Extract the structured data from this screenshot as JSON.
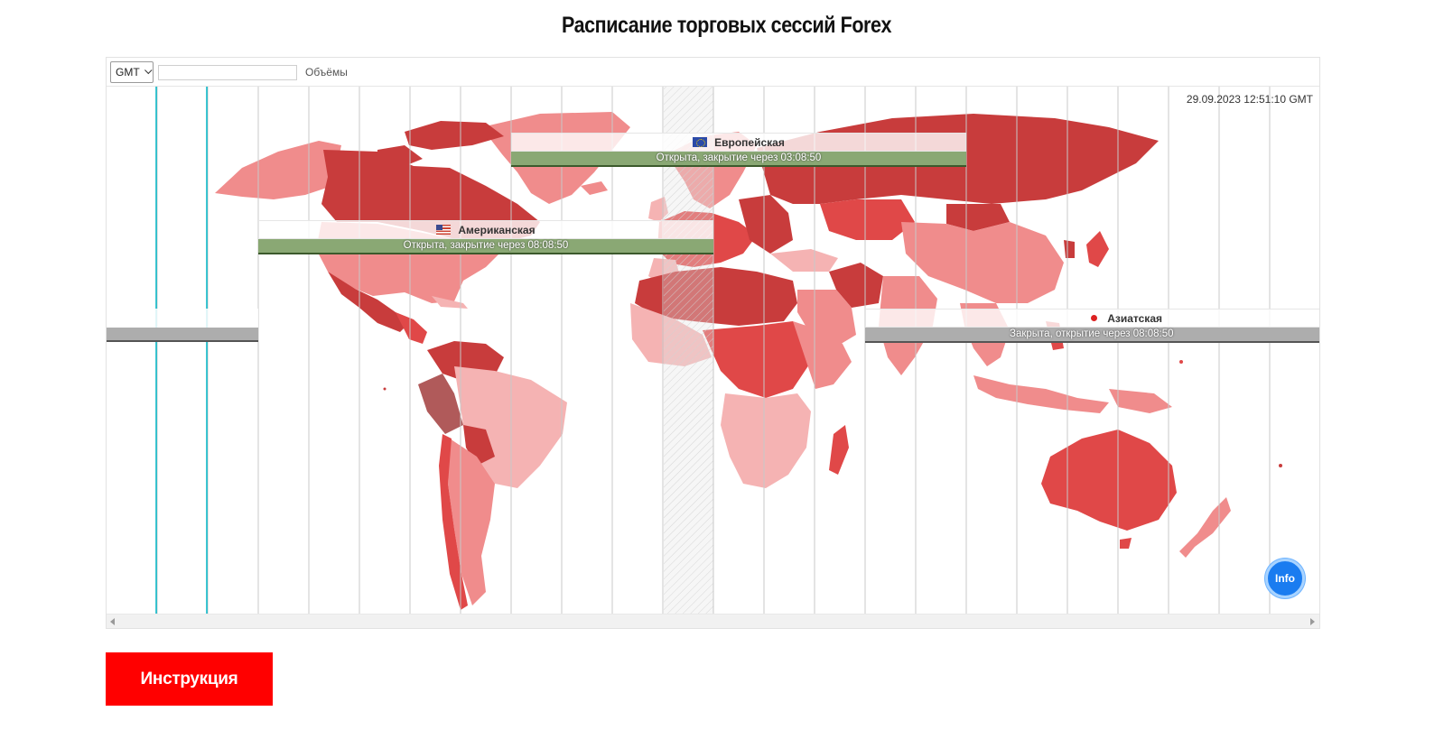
{
  "page": {
    "title": "Расписание торговых сессий Forex",
    "instruction_button": "Инструкция"
  },
  "toolbar": {
    "timezone": "GMT",
    "timezone_input_value": "",
    "volumes_label": "Объёмы"
  },
  "map": {
    "datetime": "29.09.2023 12:51:10 GMT",
    "info_button": "Info",
    "colors": {
      "dark_red": "#c83c3c",
      "red": "#e04848",
      "light_red": "#f08c8c",
      "pale_red": "#f5b3b3",
      "session_open": "#8aa874",
      "session_closed": "#adadad",
      "current_time_band": "#dcdcdc",
      "cyan_lines": "#00b7c7"
    }
  },
  "sessions": {
    "european": {
      "name": "Европейская",
      "status": "Открыта, закрытие через 03:08:50",
      "flag": "eu-flag-icon"
    },
    "american": {
      "name": "Американская",
      "status": "Открыта, закрытие через 08:08:50",
      "flag": "us-flag-icon"
    },
    "asian": {
      "name": "Азиатская",
      "status": "Закрыта, открытие через 08:08:50",
      "flag": "jp-flag-icon"
    }
  }
}
